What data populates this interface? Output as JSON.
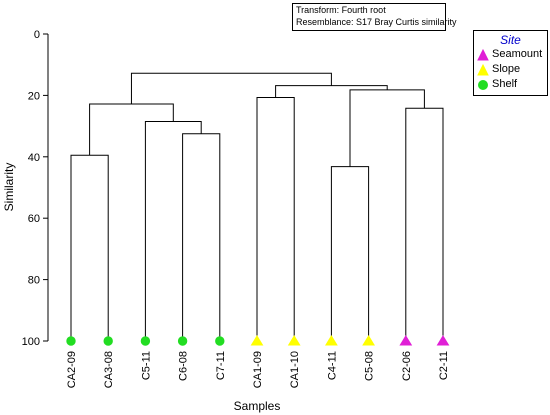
{
  "transform_note": {
    "line1": "Transform: Fourth root",
    "line2": "Resemblance: S17 Bray Curtis similarity"
  },
  "legend": {
    "title": "Site",
    "items": [
      {
        "label": "Seamount",
        "marker": "triangle",
        "color": "#e01fd6"
      },
      {
        "label": "Slope",
        "marker": "triangle",
        "color": "#ffff00"
      },
      {
        "label": "Shelf",
        "marker": "circle",
        "color": "#22dd22"
      }
    ]
  },
  "chart_data": {
    "type": "dendrogram",
    "xlabel": "Samples",
    "ylabel": "Similarity",
    "ylim": [
      0,
      100
    ],
    "y_inverted": true,
    "yticks": [
      0,
      20,
      40,
      60,
      80,
      100
    ],
    "leaves": [
      {
        "label": "CA2-09",
        "site": "Shelf"
      },
      {
        "label": "CA3-08",
        "site": "Shelf"
      },
      {
        "label": "C5-11",
        "site": "Shelf"
      },
      {
        "label": "C6-08",
        "site": "Shelf"
      },
      {
        "label": "C7-11",
        "site": "Shelf"
      },
      {
        "label": "CA1-09",
        "site": "Slope"
      },
      {
        "label": "CA1-10",
        "site": "Slope"
      },
      {
        "label": "C4-11",
        "site": "Slope"
      },
      {
        "label": "C5-08",
        "site": "Slope"
      },
      {
        "label": "C2-06",
        "site": "Seamount"
      },
      {
        "label": "C2-11",
        "site": "Seamount"
      }
    ],
    "merges": [
      {
        "left": "leaf:0",
        "right": "leaf:1",
        "similarity": 39.5
      },
      {
        "left": "leaf:3",
        "right": "leaf:4",
        "similarity": 32.5
      },
      {
        "left": "leaf:2",
        "right": "node:1",
        "similarity": 28.5
      },
      {
        "left": "node:0",
        "right": "node:2",
        "similarity": 22.8
      },
      {
        "left": "leaf:5",
        "right": "leaf:6",
        "similarity": 20.7
      },
      {
        "left": "leaf:7",
        "right": "leaf:8",
        "similarity": 43.2
      },
      {
        "left": "leaf:9",
        "right": "leaf:10",
        "similarity": 24.2
      },
      {
        "left": "node:5",
        "right": "node:6",
        "similarity": 18.2
      },
      {
        "left": "node:4",
        "right": "node:7",
        "similarity": 16.8
      },
      {
        "left": "node:3",
        "right": "node:8",
        "similarity": 12.8
      }
    ]
  }
}
